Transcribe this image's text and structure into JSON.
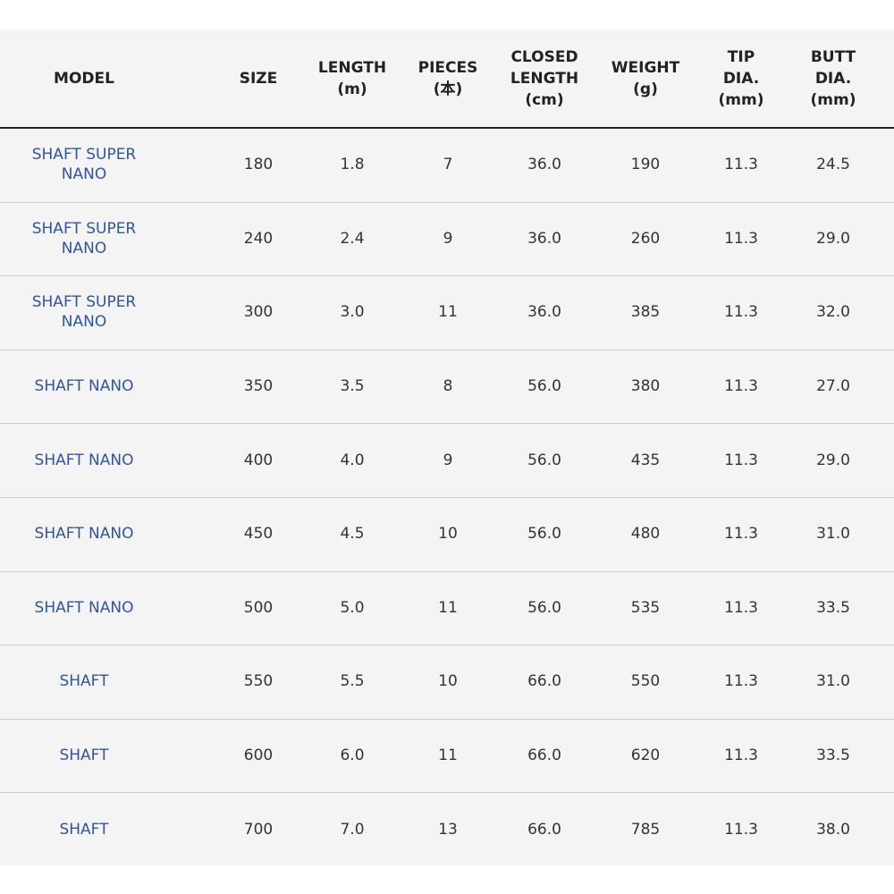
{
  "table": {
    "headers": [
      [
        "MODEL"
      ],
      [
        "SIZE"
      ],
      [
        "LENGTH",
        "(m)"
      ],
      [
        "PIECES",
        "(本)"
      ],
      [
        "CLOSED",
        "LENGTH",
        "(cm)"
      ],
      [
        "WEIGHT",
        "(g)"
      ],
      [
        "TIP",
        "DIA.",
        "(mm)"
      ],
      [
        "BUTT",
        "DIA.",
        "(mm)"
      ]
    ],
    "rows": [
      [
        "SHAFT SUPER NANO",
        "180",
        "1.8",
        "7",
        "36.0",
        "190",
        "11.3",
        "24.5"
      ],
      [
        "SHAFT SUPER NANO",
        "240",
        "2.4",
        "9",
        "36.0",
        "260",
        "11.3",
        "29.0"
      ],
      [
        "SHAFT SUPER NANO",
        "300",
        "3.0",
        "11",
        "36.0",
        "385",
        "11.3",
        "32.0"
      ],
      [
        "SHAFT NANO",
        "350",
        "3.5",
        "8",
        "56.0",
        "380",
        "11.3",
        "27.0"
      ],
      [
        "SHAFT NANO",
        "400",
        "4.0",
        "9",
        "56.0",
        "435",
        "11.3",
        "29.0"
      ],
      [
        "SHAFT NANO",
        "450",
        "4.5",
        "10",
        "56.0",
        "480",
        "11.3",
        "31.0"
      ],
      [
        "SHAFT NANO",
        "500",
        "5.0",
        "11",
        "56.0",
        "535",
        "11.3",
        "33.5"
      ],
      [
        "SHAFT",
        "550",
        "5.5",
        "10",
        "66.0",
        "550",
        "11.3",
        "31.0"
      ],
      [
        "SHAFT",
        "600",
        "6.0",
        "11",
        "66.0",
        "620",
        "11.3",
        "33.5"
      ],
      [
        "SHAFT",
        "700",
        "7.0",
        "13",
        "66.0",
        "785",
        "11.3",
        "38.0"
      ]
    ]
  }
}
